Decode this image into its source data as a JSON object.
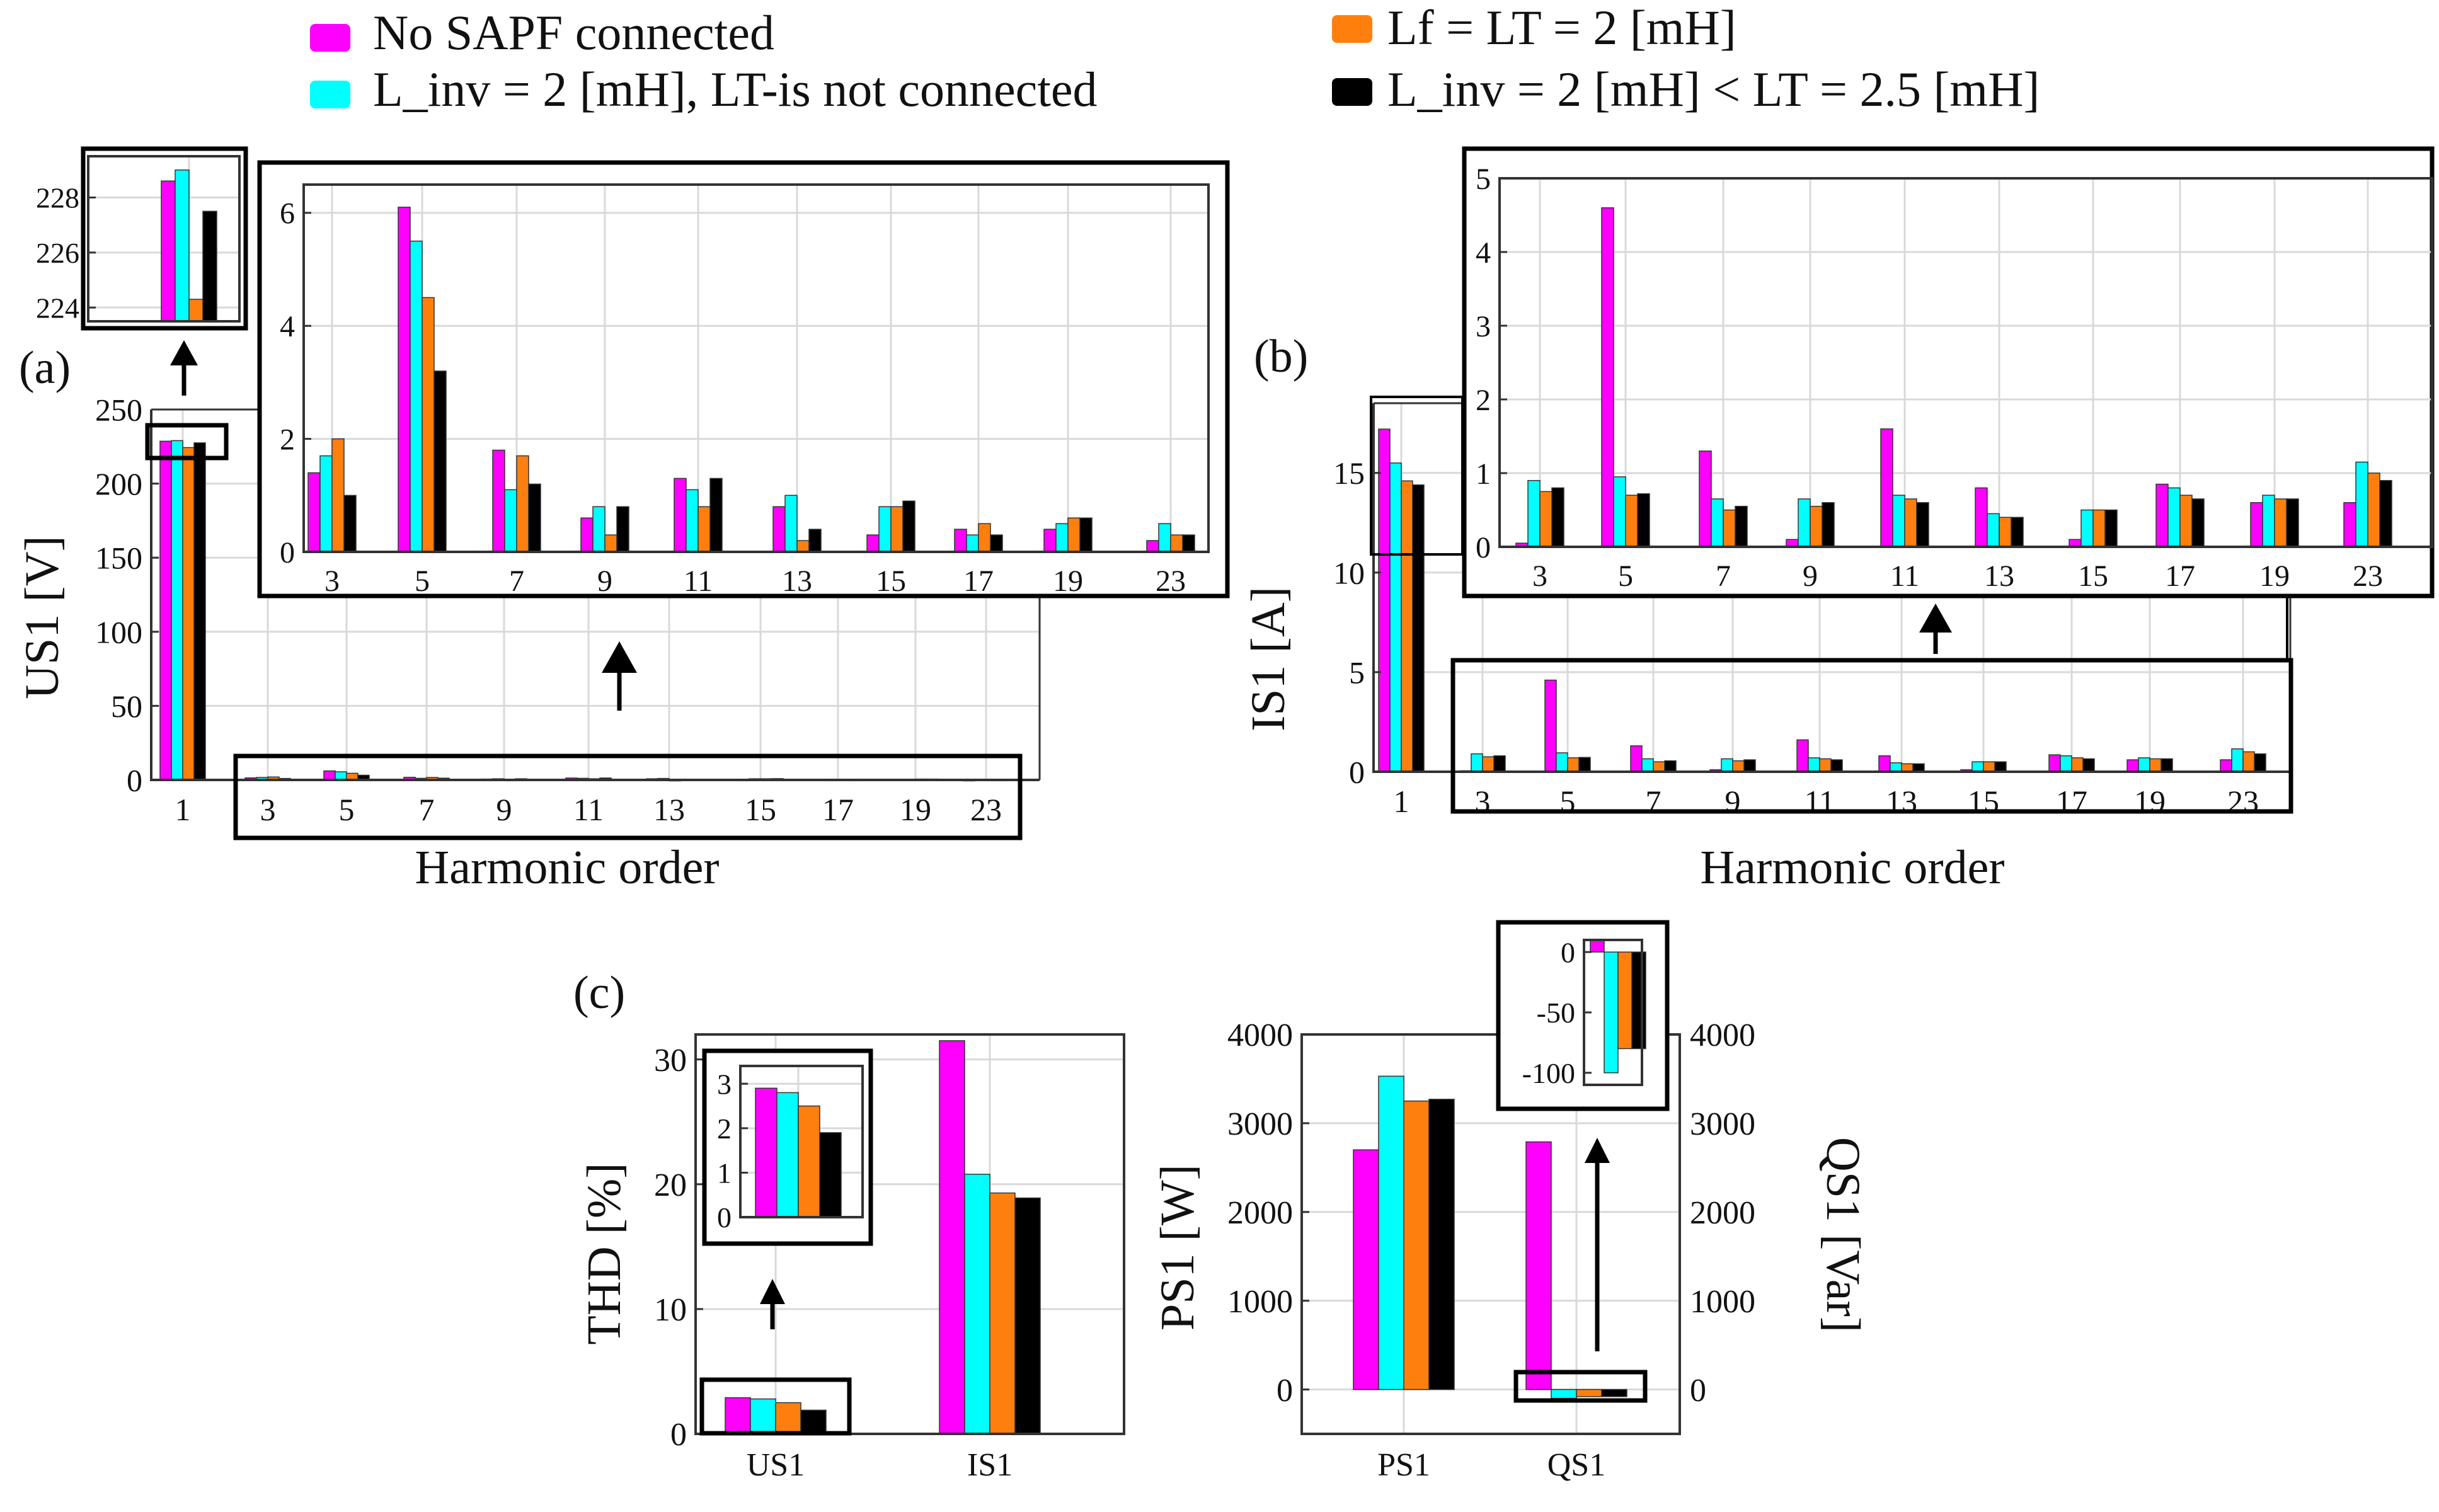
{
  "colors": {
    "magenta": "#ff00ff",
    "cyan": "#00ffff",
    "orange": "#ff7f0e",
    "black": "#000000"
  },
  "legend": [
    {
      "text": "No SAPF connected",
      "color": "#ff00ff"
    },
    {
      "text": "L_inv = 2 [mH], LT-is not connected",
      "color": "#00ffff"
    },
    {
      "text": "Lf = LT = 2 [mH]",
      "color": "#ff7f0e"
    },
    {
      "text": "L_inv = 2 [mH] < LT = 2.5 [mH]",
      "color": "#000000"
    }
  ],
  "panel_labels": {
    "a": "(a)",
    "b": "(b)",
    "c": "(c)"
  },
  "chart_data": [
    {
      "id": "a_main",
      "type": "bar",
      "panel": "(a)",
      "xlabel": "Harmonic order",
      "ylabel": "US1 [V]",
      "ylim": [
        0,
        250
      ],
      "yticks": [
        0,
        50,
        100,
        150,
        200,
        250
      ],
      "categories": [
        "1",
        "3",
        "5",
        "7",
        "9",
        "11",
        "13",
        "15",
        "17",
        "19",
        "23"
      ],
      "series": [
        {
          "name": "No SAPF connected",
          "values": [
            228.6,
            1.4,
            6.1,
            1.8,
            0.6,
            1.3,
            0.8,
            0.3,
            0.4,
            0.4,
            0.2
          ]
        },
        {
          "name": "L_inv = 2 [mH], LT-is not connected",
          "values": [
            229.0,
            1.7,
            5.5,
            1.1,
            0.8,
            1.1,
            1.0,
            0.8,
            0.3,
            0.5,
            0.5
          ]
        },
        {
          "name": "Lf = LT = 2 [mH]",
          "values": [
            224.3,
            2.0,
            4.5,
            1.7,
            0.3,
            0.8,
            0.2,
            0.8,
            0.5,
            0.6,
            0.3
          ]
        },
        {
          "name": "L_inv = 2 [mH] < LT = 2.5 [mH]",
          "values": [
            227.5,
            1.0,
            3.2,
            1.2,
            0.8,
            1.3,
            0.4,
            0.9,
            0.3,
            0.6,
            0.3
          ]
        }
      ]
    },
    {
      "id": "a_zoom_h",
      "type": "bar",
      "panel": "(a) inset harmonics 3-23",
      "ylim": [
        0,
        6.5
      ],
      "yticks": [
        0,
        2,
        4,
        6
      ],
      "categories": [
        "3",
        "5",
        "7",
        "9",
        "11",
        "13",
        "15",
        "17",
        "19",
        "23"
      ]
    },
    {
      "id": "a_zoom_1",
      "type": "bar",
      "panel": "(a) inset fundamental",
      "ylim": [
        223.5,
        229.5
      ],
      "yticks": [
        224,
        226,
        228
      ],
      "categories": [
        "1"
      ]
    },
    {
      "id": "b_main",
      "type": "bar",
      "panel": "(b)",
      "xlabel": "Harmonic order",
      "ylabel": "IS1 [A]",
      "ylim": [
        0,
        18.5
      ],
      "yticks": [
        0,
        5,
        10,
        15
      ],
      "categories": [
        "1",
        "3",
        "5",
        "7",
        "9",
        "11",
        "13",
        "15",
        "17",
        "19",
        "23"
      ],
      "series": [
        {
          "name": "No SAPF connected",
          "values": [
            17.2,
            0.05,
            4.6,
            1.3,
            0.1,
            1.6,
            0.8,
            0.1,
            0.85,
            0.6,
            0.6
          ]
        },
        {
          "name": "L_inv = 2 [mH], LT-is not connected",
          "values": [
            15.5,
            0.9,
            0.95,
            0.65,
            0.65,
            0.7,
            0.45,
            0.5,
            0.8,
            0.7,
            1.15
          ]
        },
        {
          "name": "Lf = LT = 2 [mH]",
          "values": [
            14.6,
            0.75,
            0.7,
            0.5,
            0.55,
            0.65,
            0.4,
            0.5,
            0.7,
            0.65,
            1.0
          ]
        },
        {
          "name": "L_inv = 2 [mH] < LT = 2.5 [mH]",
          "values": [
            14.4,
            0.8,
            0.72,
            0.55,
            0.6,
            0.6,
            0.4,
            0.5,
            0.65,
            0.65,
            0.9
          ]
        }
      ]
    },
    {
      "id": "b_zoom",
      "type": "bar",
      "panel": "(b) inset harmonics 3-23",
      "ylim": [
        0,
        5
      ],
      "yticks": [
        0,
        1,
        2,
        3,
        4,
        5
      ],
      "categories": [
        "3",
        "5",
        "7",
        "9",
        "11",
        "13",
        "15",
        "17",
        "19",
        "23"
      ]
    },
    {
      "id": "c_thd",
      "type": "bar",
      "panel": "(c) THD",
      "ylabel": "THD [%]",
      "ylim": [
        0,
        32
      ],
      "yticks": [
        0,
        10,
        20,
        30
      ],
      "categories": [
        "US1",
        "IS1"
      ],
      "series": [
        {
          "name": "No SAPF connected",
          "values": [
            2.9,
            31.5
          ]
        },
        {
          "name": "L_inv = 2 [mH], LT-is not connected",
          "values": [
            2.8,
            20.8
          ]
        },
        {
          "name": "Lf = LT = 2 [mH]",
          "values": [
            2.5,
            19.3
          ]
        },
        {
          "name": "L_inv = 2 [mH] < LT = 2.5 [mH]",
          "values": [
            1.9,
            18.9
          ]
        }
      ]
    },
    {
      "id": "c_thd_zoom",
      "type": "bar",
      "panel": "(c) THD inset US1",
      "ylim": [
        0,
        3.4
      ],
      "yticks": [
        0,
        1,
        2,
        3
      ],
      "categories": [
        "US1"
      ]
    },
    {
      "id": "c_power",
      "type": "bar",
      "panel": "(c) power",
      "ylabel_left": "PS1 [W]",
      "ylabel_right": "QS1 [Var]",
      "ylim": [
        -500,
        4000
      ],
      "yticks": [
        0,
        1000,
        2000,
        3000,
        4000
      ],
      "categories": [
        "PS1",
        "QS1"
      ],
      "series": [
        {
          "name": "No SAPF connected",
          "values": [
            2700,
            2790
          ]
        },
        {
          "name": "L_inv = 2 [mH], LT-is not connected",
          "values": [
            3530,
            -100
          ]
        },
        {
          "name": "Lf = LT = 2 [mH]",
          "values": [
            3250,
            -80
          ]
        },
        {
          "name": "L_inv = 2 [mH] < LT = 2.5 [mH]",
          "values": [
            3270,
            -80
          ]
        }
      ]
    },
    {
      "id": "c_q_zoom",
      "type": "bar",
      "panel": "(c) QS1 inset",
      "ylim": [
        -110,
        10
      ],
      "yticks": [
        -100,
        -50,
        0
      ],
      "categories": [
        "QS1"
      ]
    }
  ]
}
